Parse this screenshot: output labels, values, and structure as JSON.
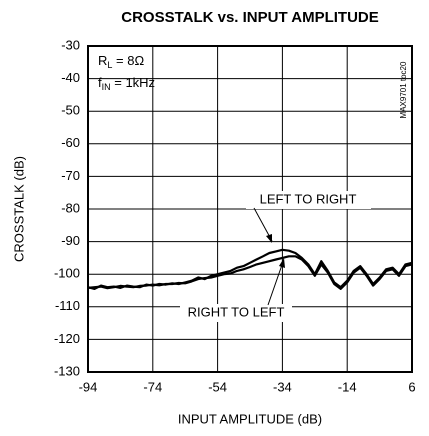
{
  "chart_data": {
    "type": "line",
    "title": "CROSSTALK vs. INPUT AMPLITUDE",
    "x_label": "INPUT AMPLITUDE (dB)",
    "y_label": "CROSSTALK (dB)",
    "annotations": [
      {
        "main": "R",
        "sub": "L",
        "rest": " = 8Ω"
      },
      {
        "main": "f",
        "sub": "IN",
        "rest": " = 1kHz"
      }
    ],
    "labels": [
      "LEFT TO RIGHT",
      "RIGHT TO LEFT"
    ],
    "code": "MAX9701 toc20",
    "x": [
      -94,
      -92,
      -90,
      -88,
      -86,
      -84,
      -82,
      -80,
      -78,
      -76,
      -74,
      -72,
      -70,
      -68,
      -66,
      -64,
      -62,
      -60,
      -58,
      -56,
      -54,
      -52,
      -50,
      -48,
      -46,
      -44,
      -42,
      -40,
      -38,
      -36,
      -34,
      -32,
      -30,
      -28,
      -26,
      -24,
      -22,
      -20,
      -18,
      -16,
      -14,
      -12,
      -10,
      -8,
      -6,
      -4,
      -2,
      0,
      2,
      4,
      6
    ],
    "series": [
      {
        "color": "#000000",
        "values": [
          -104,
          -104.5,
          -103.5,
          -104,
          -103.8,
          -104.2,
          -103.5,
          -103.8,
          -104,
          -103.2,
          -103.5,
          -103,
          -103.2,
          -102.8,
          -103,
          -102.5,
          -102,
          -101,
          -101.5,
          -100.5,
          -100,
          -99.5,
          -99,
          -98,
          -97.5,
          -96.5,
          -95.5,
          -94.5,
          -93.5,
          -93,
          -92.5,
          -92.8,
          -93.5,
          -95,
          -97,
          -100,
          -96,
          -99,
          -102.5,
          -104,
          -102,
          -99,
          -97.5,
          -100,
          -103,
          -101,
          -98.5,
          -98,
          -100,
          -97,
          -96.5
        ]
      },
      {
        "color": "#000000",
        "values": [
          -104.2,
          -104,
          -103.8,
          -104.3,
          -104,
          -103.6,
          -103.8,
          -104,
          -103.6,
          -103.5,
          -103.2,
          -103.4,
          -103,
          -103,
          -102.7,
          -102.8,
          -102.2,
          -101.5,
          -101.2,
          -101,
          -100.5,
          -100,
          -99.8,
          -99,
          -98.5,
          -97.8,
          -97,
          -96.5,
          -96,
          -95.5,
          -95,
          -94.5,
          -94.5,
          -95.5,
          -97.5,
          -100.5,
          -97,
          -99.5,
          -103,
          -104.5,
          -102.5,
          -99.5,
          -98,
          -100.5,
          -103.5,
          -101.5,
          -99,
          -98.5,
          -100.5,
          -97.5,
          -97
        ]
      }
    ],
    "xlim": [
      -94,
      6
    ],
    "ylim": [
      -130,
      -30
    ],
    "xticks": [
      -94,
      -74,
      -54,
      -34,
      -14,
      6
    ],
    "yticks": [
      -30,
      -40,
      -50,
      -60,
      -70,
      -80,
      -90,
      -100,
      -110,
      -120,
      -130
    ],
    "grid": true
  }
}
